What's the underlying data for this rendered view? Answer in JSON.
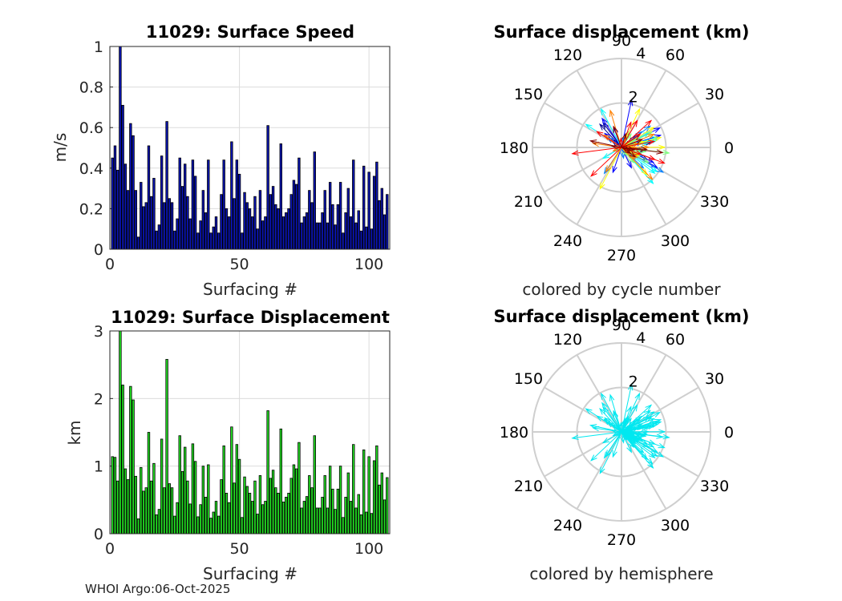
{
  "footer": "WHOI Argo:06-Oct-2025",
  "chart_data": [
    {
      "type": "bar",
      "title": "11029: Surface Speed",
      "xlabel": "Surfacing #",
      "ylabel": "m/s",
      "xlim": [
        0,
        108
      ],
      "ylim": [
        0,
        1
      ],
      "xticks": [
        "0",
        "50",
        "100"
      ],
      "yticks": [
        "0",
        "0.2",
        "0.4",
        "0.6",
        "0.8",
        "1"
      ],
      "bar_color": "#0a14b4",
      "grid": true,
      "x": [
        1,
        2,
        3,
        4,
        5,
        6,
        7,
        8,
        9,
        10,
        11,
        12,
        13,
        14,
        15,
        16,
        17,
        18,
        19,
        20,
        21,
        22,
        23,
        24,
        25,
        26,
        27,
        28,
        29,
        30,
        31,
        32,
        33,
        34,
        35,
        36,
        37,
        38,
        39,
        40,
        41,
        42,
        43,
        44,
        45,
        46,
        47,
        48,
        49,
        50,
        51,
        52,
        53,
        54,
        55,
        56,
        57,
        58,
        59,
        60,
        61,
        62,
        63,
        64,
        65,
        66,
        67,
        68,
        69,
        70,
        71,
        72,
        73,
        74,
        75,
        76,
        77,
        78,
        79,
        80,
        81,
        82,
        83,
        84,
        85,
        86,
        87,
        88,
        89,
        90,
        91,
        92,
        93,
        94,
        95,
        96,
        97,
        98,
        99,
        100,
        101,
        102,
        103,
        104,
        105,
        106,
        107
      ],
      "values": [
        0.45,
        0.51,
        0.39,
        1.0,
        0.71,
        0.42,
        0.29,
        0.62,
        0.56,
        0.29,
        0.06,
        0.33,
        0.21,
        0.23,
        0.51,
        0.26,
        0.35,
        0.09,
        0.12,
        0.46,
        0.23,
        0.63,
        0.25,
        0.23,
        0.09,
        0.15,
        0.45,
        0.31,
        0.42,
        0.26,
        0.15,
        0.44,
        0.36,
        0.08,
        0.14,
        0.29,
        0.18,
        0.44,
        0.08,
        0.11,
        0.16,
        0.08,
        0.27,
        0.44,
        0.2,
        0.16,
        0.53,
        0.25,
        0.44,
        0.37,
        0.08,
        0.28,
        0.23,
        0.2,
        0.16,
        0.26,
        0.1,
        0.29,
        0.14,
        0.16,
        0.61,
        0.27,
        0.31,
        0.22,
        0.2,
        0.52,
        0.16,
        0.18,
        0.2,
        0.27,
        0.34,
        0.32,
        0.45,
        0.13,
        0.16,
        0.18,
        0.29,
        0.23,
        0.48,
        0.13,
        0.13,
        0.18,
        0.29,
        0.13,
        0.33,
        0.22,
        0.12,
        0.22,
        0.33,
        0.08,
        0.18,
        0.3,
        0.16,
        0.44,
        0.13,
        0.19,
        0.09,
        0.41,
        0.11,
        0.38,
        0.1,
        0.36,
        0.43,
        0.24,
        0.3,
        0.17,
        0.27
      ]
    },
    {
      "type": "bar",
      "title": "11029: Surface Displacement",
      "xlabel": "Surfacing #",
      "ylabel": "km",
      "xlim": [
        0,
        108
      ],
      "ylim": [
        0,
        3
      ],
      "xticks": [
        "0",
        "50",
        "100"
      ],
      "yticks": [
        "0",
        "1",
        "2",
        "3"
      ],
      "bar_color": "#22dd22",
      "grid": true,
      "x": [
        1,
        2,
        3,
        4,
        5,
        6,
        7,
        8,
        9,
        10,
        11,
        12,
        13,
        14,
        15,
        16,
        17,
        18,
        19,
        20,
        21,
        22,
        23,
        24,
        25,
        26,
        27,
        28,
        29,
        30,
        31,
        32,
        33,
        34,
        35,
        36,
        37,
        38,
        39,
        40,
        41,
        42,
        43,
        44,
        45,
        46,
        47,
        48,
        49,
        50,
        51,
        52,
        53,
        54,
        55,
        56,
        57,
        58,
        59,
        60,
        61,
        62,
        63,
        64,
        65,
        66,
        67,
        68,
        69,
        70,
        71,
        72,
        73,
        74,
        75,
        76,
        77,
        78,
        79,
        80,
        81,
        82,
        83,
        84,
        85,
        86,
        87,
        88,
        89,
        90,
        91,
        92,
        93,
        94,
        95,
        96,
        97,
        98,
        99,
        100,
        101,
        102,
        103,
        104,
        105,
        106,
        107
      ],
      "values": [
        1.14,
        1.13,
        0.78,
        3.1,
        2.2,
        0.96,
        0.8,
        2.18,
        1.98,
        0.85,
        0.22,
        0.98,
        0.63,
        0.68,
        1.5,
        0.78,
        1.04,
        0.28,
        0.36,
        1.4,
        0.68,
        2.58,
        0.74,
        0.68,
        0.26,
        0.46,
        1.45,
        0.92,
        1.28,
        0.78,
        0.44,
        1.33,
        1.07,
        0.25,
        0.43,
        1.0,
        0.54,
        1.02,
        0.23,
        0.32,
        0.48,
        0.26,
        0.8,
        1.3,
        0.6,
        0.46,
        1.58,
        0.75,
        1.32,
        1.1,
        0.24,
        0.84,
        0.7,
        0.6,
        0.48,
        0.78,
        0.29,
        0.86,
        0.43,
        0.48,
        1.82,
        0.82,
        0.94,
        0.68,
        0.6,
        1.55,
        0.47,
        0.54,
        0.6,
        0.82,
        1.02,
        0.96,
        1.35,
        0.38,
        0.48,
        0.55,
        0.86,
        0.68,
        1.45,
        0.38,
        0.38,
        0.54,
        0.86,
        0.38,
        1.0,
        0.66,
        0.36,
        0.66,
        1.0,
        0.24,
        0.54,
        0.9,
        0.48,
        1.32,
        0.38,
        0.58,
        0.28,
        1.24,
        0.32,
        1.14,
        0.3,
        1.08,
        1.3,
        0.72,
        0.9,
        0.5,
        0.83
      ]
    },
    {
      "type": "polar-vectors",
      "title": "Surface displacement (km)",
      "caption": "colored by cycle number",
      "rlim": [
        0,
        4
      ],
      "r_labels": [
        "2",
        "4"
      ],
      "angle_labels": [
        "0",
        "30",
        "60",
        "90",
        "120",
        "150",
        "180",
        "210",
        "240",
        "270",
        "300",
        "330"
      ],
      "color_mode": "cycle",
      "colormap": [
        "#00008f",
        "#0000ff",
        "#0080ff",
        "#00ffff",
        "#80ff80",
        "#ffff00",
        "#ff8000",
        "#ff0000",
        "#800000"
      ]
    },
    {
      "type": "polar-vectors",
      "title": "Surface displacement (km)",
      "caption": "colored by hemisphere",
      "rlim": [
        0,
        4
      ],
      "r_labels": [
        "2",
        "4"
      ],
      "angle_labels": [
        "0",
        "30",
        "60",
        "90",
        "120",
        "150",
        "180",
        "210",
        "240",
        "270",
        "300",
        "330"
      ],
      "color_mode": "hemisphere",
      "vector_color": "#00e8f0"
    }
  ]
}
